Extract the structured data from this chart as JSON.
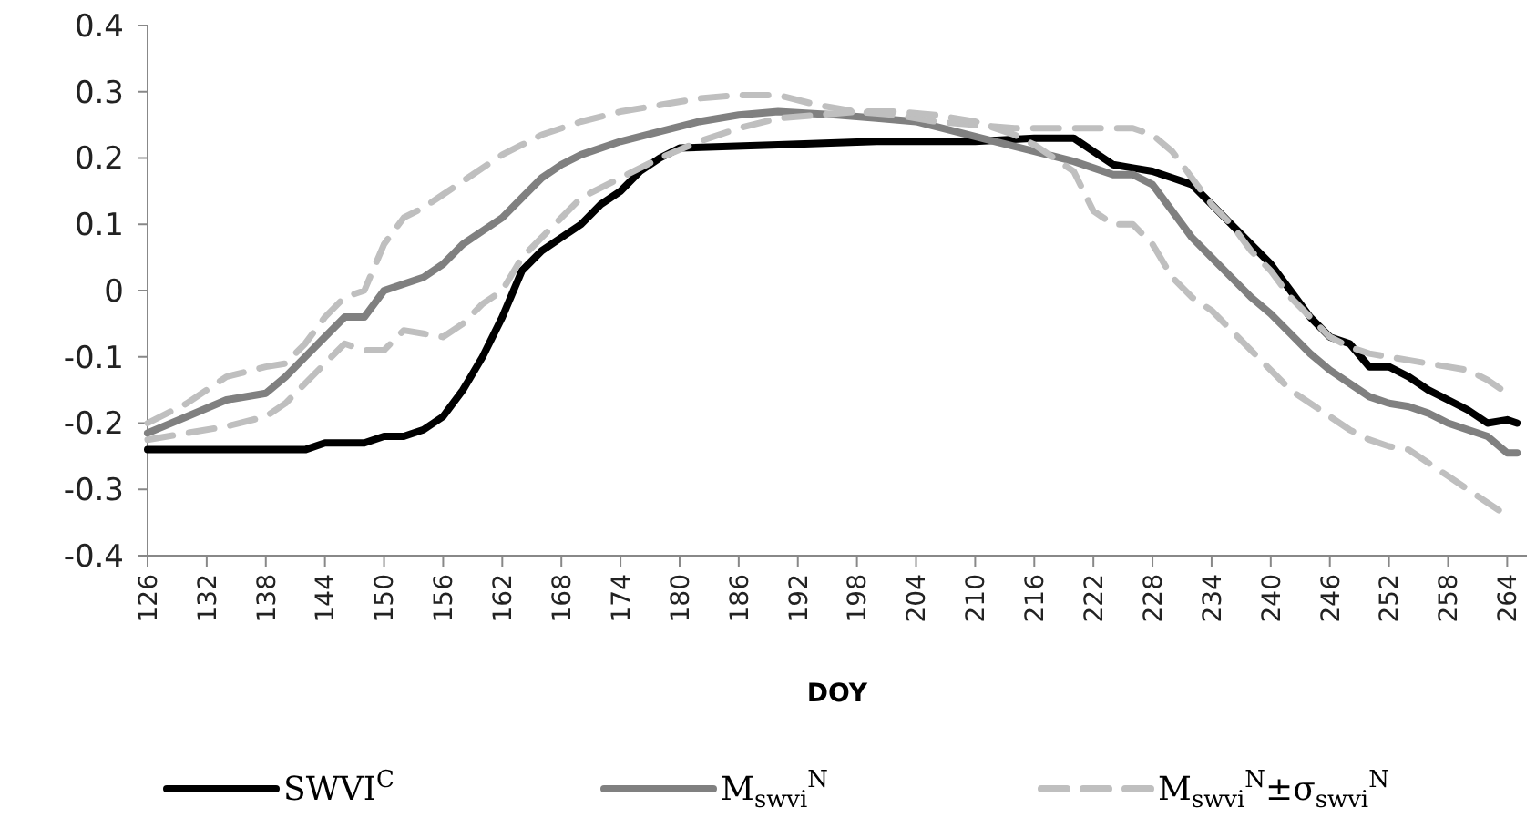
{
  "chart_data": {
    "type": "line",
    "xlabel": "DOY",
    "xlim": [
      126,
      266
    ],
    "xticks": [
      126,
      132,
      138,
      144,
      150,
      156,
      162,
      168,
      174,
      180,
      186,
      192,
      198,
      204,
      210,
      216,
      222,
      228,
      234,
      240,
      246,
      252,
      258,
      264
    ],
    "ylim": [
      -0.4,
      0.4
    ],
    "yticks": [
      -0.4,
      -0.3,
      -0.2,
      -0.1,
      0,
      0.1,
      0.2,
      0.3,
      0.4
    ],
    "grid": false,
    "legend": "bottom",
    "marker": "none",
    "series": [
      {
        "name": "SWVI$^{C}$",
        "color": "#000000",
        "line_style": "solid",
        "x": [
          126,
          130,
          134,
          138,
          142,
          144,
          148,
          150,
          152,
          154,
          156,
          158,
          160,
          162,
          164,
          166,
          168,
          170,
          172,
          174,
          176,
          178,
          180,
          190,
          200,
          210,
          216,
          220,
          222,
          224,
          226,
          228,
          230,
          232,
          234,
          236,
          238,
          240,
          242,
          244,
          246,
          248,
          250,
          252,
          254,
          256,
          258,
          260,
          262,
          264,
          265
        ],
        "values": [
          -0.24,
          -0.24,
          -0.24,
          -0.24,
          -0.24,
          -0.23,
          -0.23,
          -0.22,
          -0.22,
          -0.21,
          -0.19,
          -0.15,
          -0.1,
          -0.04,
          0.03,
          0.06,
          0.08,
          0.1,
          0.13,
          0.15,
          0.18,
          0.2,
          0.215,
          0.22,
          0.225,
          0.225,
          0.23,
          0.23,
          0.21,
          0.19,
          0.185,
          0.18,
          0.17,
          0.16,
          0.13,
          0.1,
          0.07,
          0.04,
          0,
          -0.04,
          -0.07,
          -0.08,
          -0.115,
          -0.115,
          -0.13,
          -0.15,
          -0.165,
          -0.18,
          -0.2,
          -0.195,
          -0.2
        ]
      },
      {
        "name": "M$_{swvi}$$^{N}$",
        "color": "#808080",
        "line_style": "solid",
        "x": [
          126,
          130,
          134,
          138,
          140,
          142,
          144,
          146,
          148,
          150,
          152,
          154,
          156,
          158,
          160,
          162,
          164,
          166,
          168,
          170,
          174,
          178,
          182,
          186,
          190,
          196,
          200,
          204,
          208,
          212,
          216,
          220,
          222,
          224,
          226,
          228,
          230,
          232,
          234,
          236,
          238,
          240,
          242,
          244,
          246,
          248,
          250,
          252,
          254,
          256,
          258,
          260,
          262,
          264,
          265
        ],
        "values": [
          -0.215,
          -0.19,
          -0.165,
          -0.155,
          -0.13,
          -0.1,
          -0.07,
          -0.04,
          -0.04,
          0,
          0.01,
          0.02,
          0.04,
          0.07,
          0.09,
          0.11,
          0.14,
          0.17,
          0.19,
          0.205,
          0.225,
          0.24,
          0.255,
          0.265,
          0.27,
          0.265,
          0.26,
          0.255,
          0.24,
          0.225,
          0.21,
          0.195,
          0.185,
          0.175,
          0.175,
          0.16,
          0.12,
          0.08,
          0.05,
          0.02,
          -0.01,
          -0.035,
          -0.065,
          -0.095,
          -0.12,
          -0.14,
          -0.16,
          -0.17,
          -0.175,
          -0.185,
          -0.2,
          -0.21,
          -0.22,
          -0.245,
          -0.245
        ]
      },
      {
        "name": "M$_{swvi}$$^{N}$±σ$_{swvi}$$^{N}$",
        "color": "#bfbfbf",
        "line_style": "dashed",
        "x": [
          126,
          130,
          134,
          138,
          140,
          142,
          144,
          146,
          148,
          150,
          152,
          154,
          156,
          158,
          160,
          162,
          164,
          166,
          170,
          174,
          178,
          182,
          186,
          190,
          194,
          198,
          202,
          206,
          210,
          214,
          218,
          222,
          226,
          228,
          230,
          232,
          234,
          236,
          238,
          240,
          242,
          244,
          246,
          248,
          250,
          252,
          254,
          256,
          258,
          260,
          262,
          264
        ],
        "values": [
          -0.2,
          -0.17,
          -0.13,
          -0.115,
          -0.11,
          -0.08,
          -0.04,
          -0.01,
          0,
          0.07,
          0.11,
          0.125,
          0.145,
          0.165,
          0.185,
          0.205,
          0.22,
          0.235,
          0.255,
          0.27,
          0.28,
          0.29,
          0.295,
          0.295,
          0.28,
          0.27,
          0.265,
          0.255,
          0.25,
          0.245,
          0.245,
          0.245,
          0.245,
          0.235,
          0.21,
          0.17,
          0.13,
          0.1,
          0.06,
          0.03,
          -0.01,
          -0.04,
          -0.07,
          -0.085,
          -0.095,
          -0.1,
          -0.105,
          -0.11,
          -0.115,
          -0.12,
          -0.135,
          -0.155
        ]
      },
      {
        "color": "#bfbfbf",
        "line_style": "dashed",
        "x": [
          126,
          130,
          134,
          138,
          140,
          142,
          144,
          146,
          148,
          150,
          152,
          154,
          156,
          158,
          160,
          162,
          164,
          166,
          168,
          170,
          174,
          178,
          182,
          186,
          190,
          194,
          198,
          202,
          206,
          210,
          214,
          216,
          218,
          220,
          222,
          224,
          226,
          228,
          230,
          232,
          234,
          236,
          238,
          240,
          242,
          244,
          246,
          248,
          250,
          252,
          254,
          256,
          258,
          260,
          262,
          264
        ],
        "values": [
          -0.225,
          -0.215,
          -0.205,
          -0.19,
          -0.17,
          -0.14,
          -0.11,
          -0.08,
          -0.09,
          -0.09,
          -0.06,
          -0.065,
          -0.07,
          -0.05,
          -0.02,
          0,
          0.05,
          0.08,
          0.11,
          0.14,
          0.17,
          0.2,
          0.225,
          0.245,
          0.26,
          0.265,
          0.27,
          0.27,
          0.265,
          0.255,
          0.235,
          0.22,
          0.2,
          0.18,
          0.12,
          0.1,
          0.1,
          0.07,
          0.02,
          -0.01,
          -0.03,
          -0.06,
          -0.09,
          -0.12,
          -0.15,
          -0.17,
          -0.19,
          -0.21,
          -0.225,
          -0.235,
          -0.24,
          -0.26,
          -0.28,
          -0.3,
          -0.32,
          -0.34
        ]
      }
    ]
  }
}
